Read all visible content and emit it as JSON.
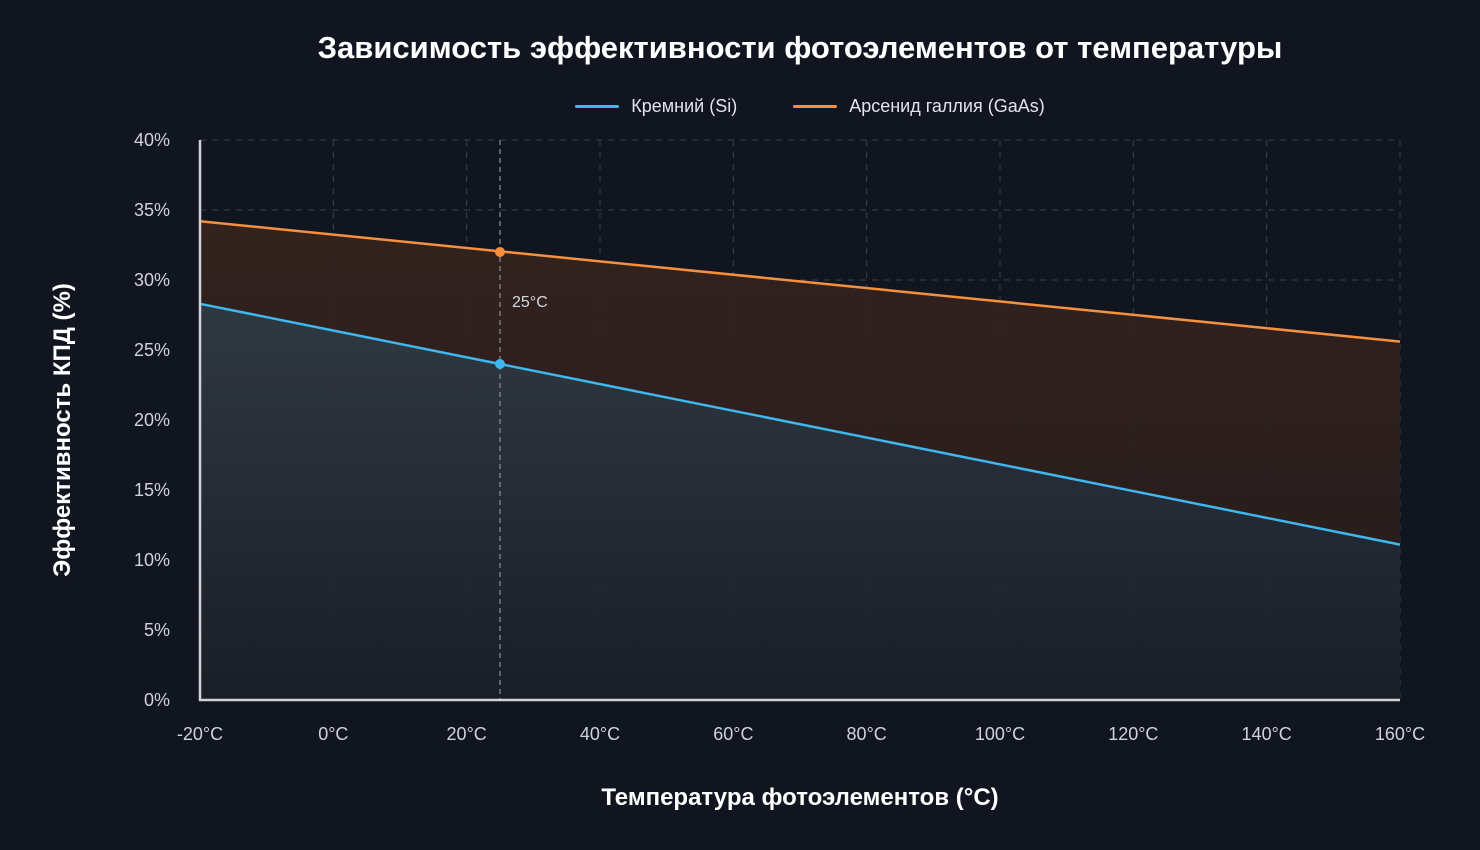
{
  "chart_data": {
    "type": "area",
    "title": "Зависимость эффективности фотоэлементов от температуры",
    "xlabel": "Температура фотоэлементов (°C)",
    "ylabel": "Эффективность КПД (%)",
    "xlim": [
      -20,
      160
    ],
    "ylim": [
      0,
      40
    ],
    "x_ticks": [
      -20,
      0,
      20,
      40,
      60,
      80,
      100,
      120,
      140,
      160
    ],
    "x_tick_labels": [
      "-20°C",
      "0°C",
      "20°C",
      "40°C",
      "60°C",
      "80°C",
      "100°C",
      "120°C",
      "140°C",
      "160°C"
    ],
    "y_ticks": [
      0,
      5,
      10,
      15,
      20,
      25,
      30,
      35,
      40
    ],
    "y_tick_labels": [
      "0%",
      "5%",
      "10%",
      "15%",
      "20%",
      "25%",
      "30%",
      "35%",
      "40%"
    ],
    "grid": true,
    "legend_position": "top-center",
    "x": [
      -20,
      160
    ],
    "series": [
      {
        "name": "Кремний (Si)",
        "values": [
          28.3,
          11.1
        ],
        "color": "#3fb6ec"
      },
      {
        "name": "Арсенид галлия (GaAs)",
        "values": [
          34.2,
          25.6
        ],
        "color": "#f5913e"
      }
    ],
    "reference": {
      "x": 25,
      "label": "25°C"
    },
    "markers": [
      {
        "series": 0,
        "x": 25,
        "y": 24.0
      },
      {
        "series": 1,
        "x": 25,
        "y": 32.0
      }
    ]
  }
}
